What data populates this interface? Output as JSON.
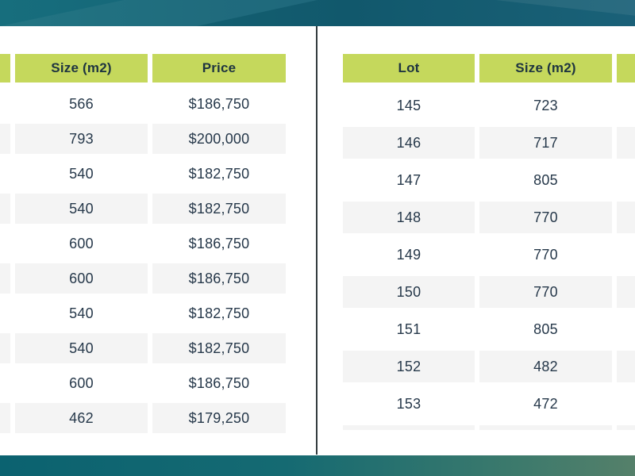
{
  "colors": {
    "header_cell_bg": "#c5d85c",
    "stripe_row_bg": "#f4f4f4",
    "cell_text": "#26384a",
    "header_text": "#1e3440",
    "divider": "#333b3f",
    "background": "#ffffff",
    "top_banner_teal": "#176e7d",
    "top_banner_teal_dark": "#135e73",
    "top_banner_blue": "#1c6780",
    "bottom_banner_left": "#0b6270",
    "bottom_banner_right": "#55806a"
  },
  "left_table": {
    "headers": [
      "Size (m2)",
      "Price"
    ],
    "cutoff_column_side": "left",
    "rows": [
      {
        "size": "566",
        "price": "$186,750"
      },
      {
        "size": "793",
        "price": "$200,000"
      },
      {
        "size": "540",
        "price": "$182,750"
      },
      {
        "size": "540",
        "price": "$182,750"
      },
      {
        "size": "600",
        "price": "$186,750"
      },
      {
        "size": "600",
        "price": "$186,750"
      },
      {
        "size": "540",
        "price": "$182,750"
      },
      {
        "size": "540",
        "price": "$182,750"
      },
      {
        "size": "600",
        "price": "$186,750"
      },
      {
        "size": "462",
        "price": "$179,250"
      }
    ]
  },
  "right_table": {
    "headers": [
      "Lot",
      "Size (m2)"
    ],
    "cutoff_column_side": "right",
    "partial_row_visible": true,
    "rows": [
      {
        "lot": "145",
        "size": "723"
      },
      {
        "lot": "146",
        "size": "717"
      },
      {
        "lot": "147",
        "size": "805"
      },
      {
        "lot": "148",
        "size": "770"
      },
      {
        "lot": "149",
        "size": "770"
      },
      {
        "lot": "150",
        "size": "770"
      },
      {
        "lot": "151",
        "size": "805"
      },
      {
        "lot": "152",
        "size": "482"
      },
      {
        "lot": "153",
        "size": "472"
      }
    ]
  }
}
